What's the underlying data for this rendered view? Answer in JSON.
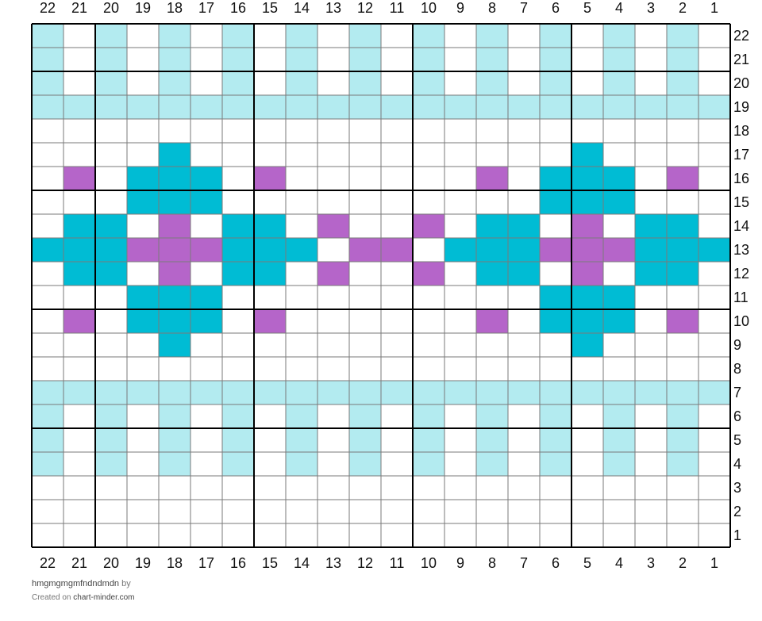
{
  "chart_data": {
    "type": "grid",
    "columns": 22,
    "rows": 22,
    "column_labels": [
      "22",
      "21",
      "20",
      "19",
      "18",
      "17",
      "16",
      "15",
      "14",
      "13",
      "12",
      "11",
      "10",
      "9",
      "8",
      "7",
      "6",
      "5",
      "4",
      "3",
      "2",
      "1"
    ],
    "row_labels": [
      "22",
      "21",
      "20",
      "19",
      "18",
      "17",
      "16",
      "15",
      "14",
      "13",
      "12",
      "11",
      "10",
      "9",
      "8",
      "7",
      "6",
      "5",
      "4",
      "3",
      "2",
      "1"
    ],
    "colors": {
      "L": "#b3ebf0",
      "T": "#00bcd4",
      "P": "#b565c9",
      "W": "#ffffff"
    },
    "grid_rows": [
      "LWLWLWLWLWLWLWLWLWLWLW",
      "LWLWLWLWLWLWLWLWLWLWLW",
      "LWLWLWLWLWLWLWLWLWLWLW",
      "LLLLLLLLLLLLLLLLLLLLLL",
      "WWWWWWWWWWWWWWWWWWWWWW",
      "WWWWTWWWWWWWWWWWWTWWWW",
      "WPWTTTWPWWWWWWPWTTTWPW",
      "WWWTTTWWWWWWWWWWTTTWWW",
      "WTTWPWTTWPWWPWTTWPWTTW",
      "TTTPPPTTTWPPWTTTPPPTTT",
      "WTTWPWTTWPWWPWTTWPWTTW",
      "WWWTTTWWWWWWWWWWTTTWWW",
      "WPWTTTWPWWWWWWPWTTTWPW",
      "WWWWTWWWWWWWWWWWWTWWWW",
      "WWWWWWWWWWWWWWWWWWWWWW",
      "LLLLLLLLLLLLLLLLLLLLLL",
      "LWLWLWLWLWLWLWLWLWLWLW",
      "LWLWLWLWLWLWLWLWLWLWLW",
      "LWLWLWLWLWLWLWLWLWLWLW",
      "WWWWWWWWWWWWWWWWWWWWWW",
      "WWWWWWWWWWWWWWWWWWWWWW",
      "WWWWWWWWWWWWWWWWWWWWWW"
    ],
    "major_line_every": 5
  },
  "footer": {
    "chart_name": "hmgmgmgmfndndmdn",
    "by_label": "by",
    "created_on": "Created on",
    "site": "chart-minder.com"
  }
}
